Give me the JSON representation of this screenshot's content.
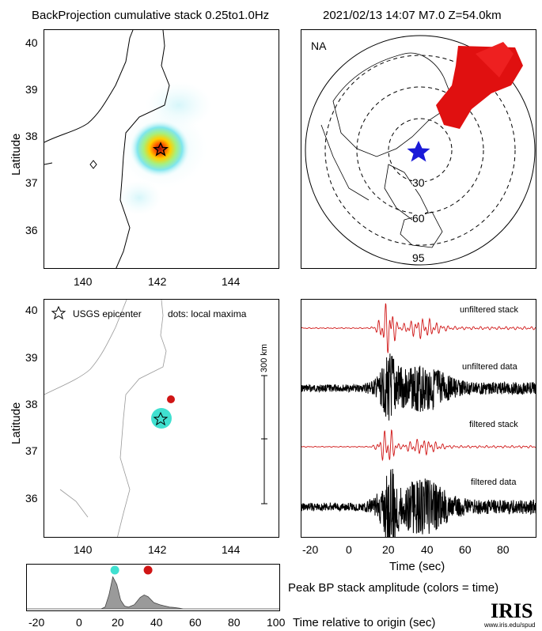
{
  "header": {
    "title": "BackProjection cumulative stack 0.25to1.0Hz",
    "event": "2021/02/13 14:07  M7.0  Z=54.0km"
  },
  "map_top": {
    "ylabel": "Latitude",
    "yticks": [
      "40",
      "39",
      "38",
      "37",
      "36"
    ],
    "xticks": [
      "140",
      "142",
      "144"
    ],
    "epicenter": {
      "lon": 141.95,
      "lat": 37.72
    }
  },
  "map_bottom": {
    "ylabel": "Latitude",
    "yticks": [
      "40",
      "39",
      "38",
      "37",
      "36"
    ],
    "xticks": [
      "140",
      "142",
      "144"
    ],
    "legend_star": "USGS epicenter",
    "legend_dots": "dots: local maxima",
    "scale_label": "300 km",
    "local_maxima": [
      {
        "lon": 142.25,
        "lat": 38.08,
        "color": "#d01515"
      },
      {
        "lon": 142.0,
        "lat": 37.72,
        "color": "#40e0d0"
      }
    ]
  },
  "globe": {
    "network": "NA",
    "ring_labels": [
      "30",
      "60",
      "95"
    ]
  },
  "traces": {
    "labels": [
      "unfiltered stack",
      "unfiltered data",
      "filtered stack",
      "filtered data"
    ],
    "xticks": [
      "-20",
      "0",
      "20",
      "40",
      "60",
      "80"
    ],
    "xlabel": "Time (sec)"
  },
  "bottom_panel": {
    "xticks": [
      "-20",
      "0",
      "20",
      "40",
      "60",
      "80",
      "100"
    ],
    "xlabel": "Time relative to origin (sec)",
    "caption": "Peak BP stack amplitude (colors = time)"
  },
  "logo": {
    "text": "IRIS",
    "url": "www.iris.edu/spud"
  },
  "chart_data": [
    {
      "type": "line",
      "title": "Peak BP stack amplitude (colors = time)",
      "xlabel": "Time relative to origin (sec)",
      "xlim": [
        -30,
        100
      ],
      "x": [
        -30,
        0,
        5,
        8,
        10,
        12,
        14,
        16,
        18,
        20,
        22,
        25,
        28,
        30,
        32,
        35,
        38,
        40,
        43,
        45,
        48,
        50,
        100
      ],
      "series": [
        {
          "values": [
            0,
            0,
            0,
            0,
            0.05,
            0.4,
            0.92,
            0.7,
            0.25,
            0.08,
            0.05,
            0.12,
            0.33,
            0.4,
            0.35,
            0.18,
            0.12,
            0.09,
            0.05,
            0.04,
            0.02,
            0,
            0
          ]
        }
      ],
      "markers": [
        {
          "x": 15,
          "color": "#40e0d0"
        },
        {
          "x": 32,
          "color": "#d01515"
        }
      ]
    },
    {
      "type": "line",
      "title": "",
      "xlabel": "Time (sec)",
      "xlim": [
        -28,
        95
      ],
      "series": [
        {
          "name": "unfiltered stack",
          "color": "#d01515"
        },
        {
          "name": "unfiltered data",
          "color": "#000000"
        },
        {
          "name": "filtered stack",
          "color": "#d01515"
        },
        {
          "name": "filtered data",
          "color": "#000000"
        }
      ]
    }
  ]
}
